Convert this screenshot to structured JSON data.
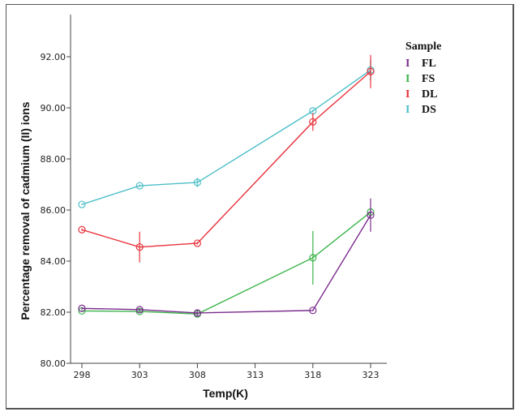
{
  "chart_data": {
    "type": "line",
    "title": "",
    "xlabel": "Temp(K)",
    "ylabel": "Percentage removal of cadmium (II) ions",
    "x": [
      298,
      303,
      308,
      318,
      323
    ],
    "xticks": [
      "298",
      "303",
      "308",
      "313",
      "318",
      "323"
    ],
    "xlim": [
      297,
      326
    ],
    "yticks": [
      "80.00",
      "82.00",
      "84.00",
      "86.00",
      "88.00",
      "90.00",
      "92.00"
    ],
    "ylim": [
      80,
      93.6
    ],
    "grid": false,
    "legend": {
      "title": "Sample",
      "placement": "right"
    },
    "series": [
      {
        "name": "FL",
        "color": "#7b2d8e",
        "values": [
          82.15,
          82.1,
          81.97,
          82.07,
          85.8
        ],
        "errors": [
          0.05,
          0.05,
          0.12,
          0.03,
          0.65
        ]
      },
      {
        "name": "FS",
        "color": "#3cb44b",
        "values": [
          82.05,
          82.03,
          81.93,
          84.13,
          85.92
        ],
        "errors": [
          0.03,
          0.03,
          0.05,
          1.05,
          0.1
        ]
      },
      {
        "name": "DL",
        "color": "#e8323c",
        "values": [
          85.23,
          84.55,
          84.7,
          89.45,
          91.42
        ],
        "errors": [
          0.05,
          0.6,
          0.05,
          0.35,
          0.65
        ]
      },
      {
        "name": "DS",
        "color": "#4fc0c8",
        "values": [
          86.22,
          86.95,
          87.08,
          89.88,
          91.48
        ],
        "errors": [
          0.03,
          0.05,
          0.18,
          0.05,
          0.4
        ]
      }
    ],
    "legend_symbol": "I"
  }
}
